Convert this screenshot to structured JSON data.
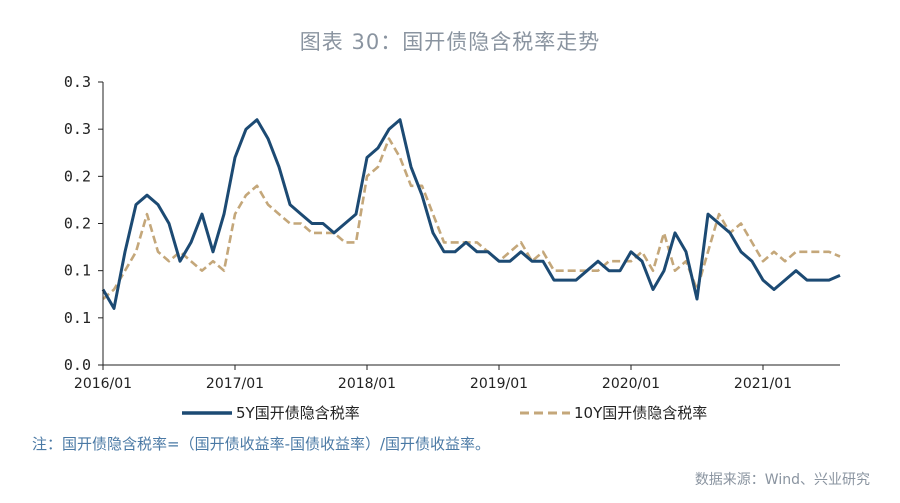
{
  "title": "图表 30：国开债隐含税率走势",
  "note": "注：国开债隐含税率=（国开债收益率-国债收益率）/国开债收益率。",
  "source": "数据来源：Wind、兴业研究",
  "colors": {
    "series_5y": "#1c4a73",
    "series_10y": "#c4a77a",
    "axis": "#222222"
  },
  "chart_data": {
    "type": "line",
    "title": "图表 30：国开债隐含税率走势",
    "xlabel": "",
    "ylabel": "",
    "y_tick_labels": [
      "0.0",
      "0.1",
      "0.1",
      "0.2",
      "0.2",
      "0.3",
      "0.3"
    ],
    "y_tick_values": [
      0.0,
      0.05,
      0.1,
      0.15,
      0.2,
      0.25,
      0.3
    ],
    "ylim": [
      0.0,
      0.3
    ],
    "x_tick_labels": [
      "2016/01",
      "2017/01",
      "2018/01",
      "2019/01",
      "2020/01",
      "2021/01"
    ],
    "xlim": [
      "2016-01",
      "2021-08"
    ],
    "grid": false,
    "legend_position": "bottom",
    "series": [
      {
        "name": "5Y国开债隐含税率",
        "style": "solid",
        "x": [
          "2016-01",
          "2016-02",
          "2016-03",
          "2016-04",
          "2016-05",
          "2016-06",
          "2016-07",
          "2016-08",
          "2016-09",
          "2016-10",
          "2016-11",
          "2016-12",
          "2017-01",
          "2017-02",
          "2017-03",
          "2017-04",
          "2017-05",
          "2017-06",
          "2017-07",
          "2017-08",
          "2017-09",
          "2017-10",
          "2017-11",
          "2017-12",
          "2018-01",
          "2018-02",
          "2018-03",
          "2018-04",
          "2018-05",
          "2018-06",
          "2018-07",
          "2018-08",
          "2018-09",
          "2018-10",
          "2018-11",
          "2018-12",
          "2019-01",
          "2019-02",
          "2019-03",
          "2019-04",
          "2019-05",
          "2019-06",
          "2019-07",
          "2019-08",
          "2019-09",
          "2019-10",
          "2019-11",
          "2019-12",
          "2020-01",
          "2020-02",
          "2020-03",
          "2020-04",
          "2020-05",
          "2020-06",
          "2020-07",
          "2020-08",
          "2020-09",
          "2020-10",
          "2020-11",
          "2020-12",
          "2021-01",
          "2021-02",
          "2021-03",
          "2021-04",
          "2021-05",
          "2021-06",
          "2021-07",
          "2021-08"
        ],
        "values": [
          0.08,
          0.06,
          0.12,
          0.17,
          0.18,
          0.17,
          0.15,
          0.11,
          0.13,
          0.16,
          0.12,
          0.16,
          0.22,
          0.25,
          0.26,
          0.24,
          0.21,
          0.17,
          0.16,
          0.15,
          0.15,
          0.14,
          0.15,
          0.16,
          0.22,
          0.23,
          0.25,
          0.26,
          0.21,
          0.18,
          0.14,
          0.12,
          0.12,
          0.13,
          0.12,
          0.12,
          0.11,
          0.11,
          0.12,
          0.11,
          0.11,
          0.09,
          0.09,
          0.09,
          0.1,
          0.11,
          0.1,
          0.1,
          0.12,
          0.11,
          0.08,
          0.1,
          0.14,
          0.12,
          0.07,
          0.16,
          0.15,
          0.14,
          0.12,
          0.11,
          0.09,
          0.08,
          0.09,
          0.1,
          0.09,
          0.09,
          0.09,
          0.095
        ]
      },
      {
        "name": "10Y国开债隐含税率",
        "style": "dashed",
        "x": [
          "2016-01",
          "2016-02",
          "2016-03",
          "2016-04",
          "2016-05",
          "2016-06",
          "2016-07",
          "2016-08",
          "2016-09",
          "2016-10",
          "2016-11",
          "2016-12",
          "2017-01",
          "2017-02",
          "2017-03",
          "2017-04",
          "2017-05",
          "2017-06",
          "2017-07",
          "2017-08",
          "2017-09",
          "2017-10",
          "2017-11",
          "2017-12",
          "2018-01",
          "2018-02",
          "2018-03",
          "2018-04",
          "2018-05",
          "2018-06",
          "2018-07",
          "2018-08",
          "2018-09",
          "2018-10",
          "2018-11",
          "2018-12",
          "2019-01",
          "2019-02",
          "2019-03",
          "2019-04",
          "2019-05",
          "2019-06",
          "2019-07",
          "2019-08",
          "2019-09",
          "2019-10",
          "2019-11",
          "2019-12",
          "2020-01",
          "2020-02",
          "2020-03",
          "2020-04",
          "2020-05",
          "2020-06",
          "2020-07",
          "2020-08",
          "2020-09",
          "2020-10",
          "2020-11",
          "2020-12",
          "2021-01",
          "2021-02",
          "2021-03",
          "2021-04",
          "2021-05",
          "2021-06",
          "2021-07",
          "2021-08"
        ],
        "values": [
          0.07,
          0.08,
          0.1,
          0.12,
          0.16,
          0.12,
          0.11,
          0.12,
          0.11,
          0.1,
          0.11,
          0.1,
          0.16,
          0.18,
          0.19,
          0.17,
          0.16,
          0.15,
          0.15,
          0.14,
          0.14,
          0.14,
          0.13,
          0.13,
          0.2,
          0.21,
          0.24,
          0.22,
          0.19,
          0.19,
          0.16,
          0.13,
          0.13,
          0.13,
          0.13,
          0.12,
          0.11,
          0.12,
          0.13,
          0.11,
          0.12,
          0.1,
          0.1,
          0.1,
          0.1,
          0.1,
          0.11,
          0.11,
          0.11,
          0.12,
          0.1,
          0.14,
          0.1,
          0.11,
          0.08,
          0.12,
          0.16,
          0.14,
          0.15,
          0.13,
          0.11,
          0.12,
          0.11,
          0.12,
          0.12,
          0.12,
          0.12,
          0.115
        ]
      }
    ]
  }
}
